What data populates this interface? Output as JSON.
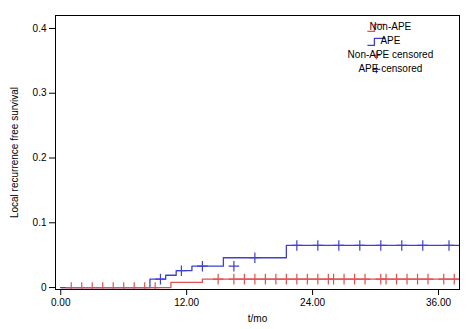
{
  "chart_data": {
    "type": "line",
    "xlabel": "t/mo",
    "ylabel": "Local recurrence free survival",
    "xlim": [
      -0.5,
      38
    ],
    "ylim": [
      -0.003,
      0.42
    ],
    "xticks": [
      {
        "value": 0.0,
        "label": "0.00"
      },
      {
        "value": 12.0,
        "label": "12.00"
      },
      {
        "value": 24.0,
        "label": "24.00"
      },
      {
        "value": 36.0,
        "label": "36.00"
      }
    ],
    "yticks": [
      0,
      0.1,
      0.2,
      0.3,
      0.4
    ],
    "grid": false,
    "legend": "upper right",
    "series": [
      {
        "name": "Non-APE",
        "type": "line",
        "color": "#e05050",
        "x": [
          0,
          10.5,
          10.5,
          13.5,
          13.5,
          38
        ],
        "values": [
          0.0,
          0.0,
          0.008,
          0.008,
          0.013,
          0.013
        ]
      },
      {
        "name": "APE",
        "type": "line",
        "color": "#4040d0",
        "x": [
          0,
          8.5,
          8.5,
          10.0,
          10.0,
          11.0,
          11.0,
          12.5,
          12.5,
          15.5,
          15.5,
          21.5,
          21.5,
          38
        ],
        "values": [
          0.0,
          0.0,
          0.013,
          0.013,
          0.019,
          0.019,
          0.026,
          0.026,
          0.033,
          0.033,
          0.046,
          0.046,
          0.065,
          0.065
        ]
      },
      {
        "name": "Non-APE censored",
        "type": "scatter",
        "marker": "+",
        "color": "#e05050",
        "x": [
          1.0,
          2.0,
          3.0,
          4.0,
          5.0,
          6.0,
          7.0,
          8.0,
          9.0,
          15.0,
          16.5,
          17.5,
          18.5,
          19.5,
          20.5,
          21.5,
          22.5,
          23.5,
          24.5,
          25.5,
          26.0,
          27.0,
          28.0,
          29.0,
          30.5,
          31.0,
          32.0,
          33.0,
          34.0,
          35.0,
          36.5,
          37.5
        ],
        "values": [
          0.0,
          0.0,
          0.0,
          0.0,
          0.0,
          0.0,
          0.0,
          0.0,
          0.0,
          0.013,
          0.013,
          0.013,
          0.013,
          0.013,
          0.013,
          0.013,
          0.013,
          0.013,
          0.013,
          0.013,
          0.013,
          0.013,
          0.013,
          0.013,
          0.013,
          0.013,
          0.013,
          0.013,
          0.013,
          0.013,
          0.013,
          0.013
        ]
      },
      {
        "name": "APE censored",
        "type": "scatter",
        "marker": "+",
        "color": "#4040d0",
        "x": [
          9.5,
          11.5,
          13.5,
          16.5,
          18.5,
          22.5,
          24.5,
          26.5,
          28.5,
          30.5,
          32.5,
          34.5,
          37.0
        ],
        "values": [
          0.013,
          0.026,
          0.033,
          0.033,
          0.046,
          0.065,
          0.065,
          0.065,
          0.065,
          0.065,
          0.065,
          0.065,
          0.065
        ]
      }
    ]
  }
}
